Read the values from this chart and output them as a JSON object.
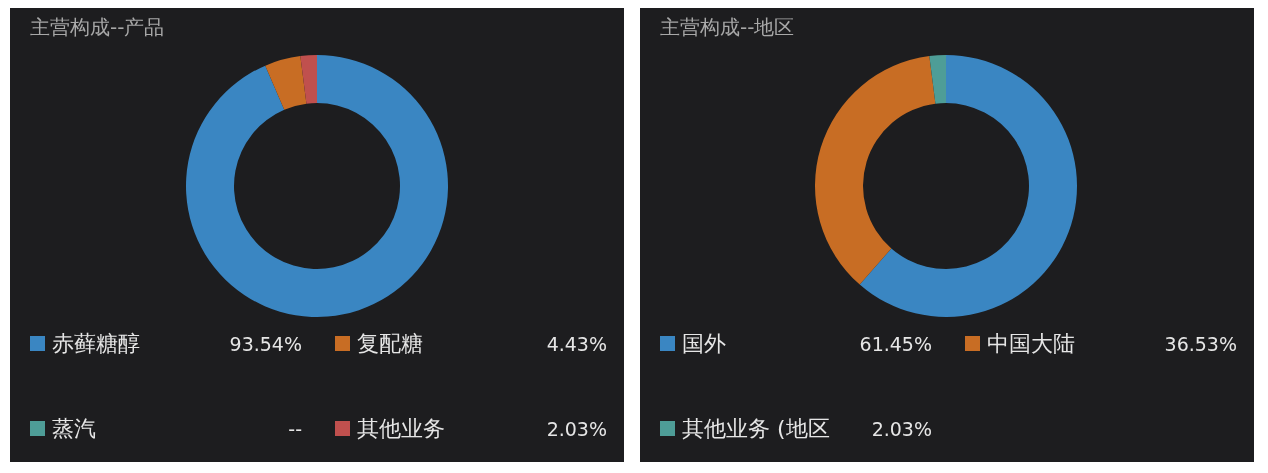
{
  "chart_data": [
    {
      "type": "donut",
      "title": "主营构成--产品",
      "categories": [
        "赤藓糖醇",
        "复配糖",
        "蒸汽",
        "其他业务"
      ],
      "values": [
        93.54,
        4.43,
        null,
        2.03
      ],
      "colors": [
        "#3a86c2",
        "#c86d24",
        "#4e9d97",
        "#c0504e"
      ],
      "value_labels": [
        "93.54%",
        "4.43%",
        "--",
        "2.03%"
      ],
      "legend": "bottom"
    },
    {
      "type": "donut",
      "title": "主营构成--地区",
      "categories": [
        "国外",
        "中国大陆",
        "其他业务 (地区"
      ],
      "values": [
        61.45,
        36.53,
        2.03
      ],
      "colors": [
        "#3a86c2",
        "#c86d24",
        "#4e9d97"
      ],
      "value_labels": [
        "61.45%",
        "36.53%",
        "2.03%"
      ],
      "legend": "bottom"
    }
  ]
}
